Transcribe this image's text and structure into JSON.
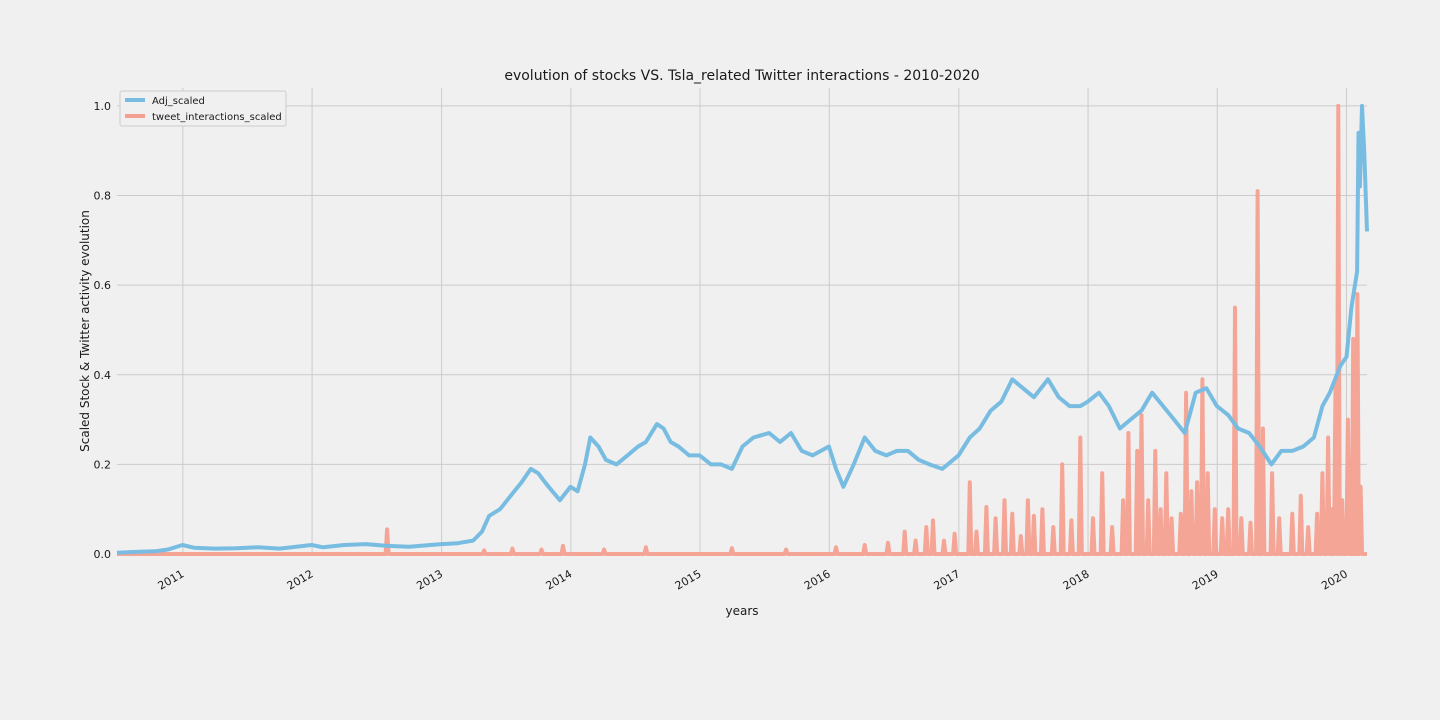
{
  "chart_data": {
    "type": "line",
    "title": "evolution of stocks VS. Tsla_related Twitter interactions - 2010-2020",
    "xlabel": "years",
    "ylabel": "Scaled Stock & Twitter activity evolution",
    "xlim": [
      "2010-06-29",
      "2020-02-28"
    ],
    "ylim": [
      0,
      1.04
    ],
    "x_ticks": [
      "2011",
      "2012",
      "2013",
      "2014",
      "2015",
      "2016",
      "2017",
      "2018",
      "2019",
      "2020"
    ],
    "y_ticks": [
      "0.0",
      "0.2",
      "0.4",
      "0.6",
      "0.8",
      "1.0"
    ],
    "grid": true,
    "legend_position": "upper-left",
    "series": [
      {
        "name": "Adj_scaled",
        "color": "#78bde1",
        "points": [
          [
            "2010-06-29",
            0.003
          ],
          [
            "2010-09-01",
            0.005
          ],
          [
            "2010-10-15",
            0.006
          ],
          [
            "2010-11-20",
            0.01
          ],
          [
            "2010-12-31",
            0.02
          ],
          [
            "2011-02-01",
            0.014
          ],
          [
            "2011-04-01",
            0.012
          ],
          [
            "2011-06-01",
            0.013
          ],
          [
            "2011-08-01",
            0.015
          ],
          [
            "2011-10-01",
            0.012
          ],
          [
            "2011-12-31",
            0.02
          ],
          [
            "2012-02-01",
            0.015
          ],
          [
            "2012-04-01",
            0.02
          ],
          [
            "2012-06-01",
            0.022
          ],
          [
            "2012-08-01",
            0.018
          ],
          [
            "2012-10-01",
            0.016
          ],
          [
            "2012-12-31",
            0.022
          ],
          [
            "2013-02-15",
            0.024
          ],
          [
            "2013-03-31",
            0.03
          ],
          [
            "2013-04-25",
            0.05
          ],
          [
            "2013-05-15",
            0.085
          ],
          [
            "2013-06-15",
            0.1
          ],
          [
            "2013-07-15",
            0.13
          ],
          [
            "2013-08-15",
            0.16
          ],
          [
            "2013-09-10",
            0.19
          ],
          [
            "2013-10-01",
            0.18
          ],
          [
            "2013-10-20",
            0.16
          ],
          [
            "2013-11-10",
            0.14
          ],
          [
            "2013-12-01",
            0.12
          ],
          [
            "2013-12-31",
            0.15
          ],
          [
            "2014-01-20",
            0.14
          ],
          [
            "2014-02-10",
            0.2
          ],
          [
            "2014-02-25",
            0.26
          ],
          [
            "2014-03-20",
            0.24
          ],
          [
            "2014-04-10",
            0.21
          ],
          [
            "2014-05-10",
            0.2
          ],
          [
            "2014-06-10",
            0.22
          ],
          [
            "2014-07-10",
            0.24
          ],
          [
            "2014-08-01",
            0.25
          ],
          [
            "2014-09-01",
            0.29
          ],
          [
            "2014-09-20",
            0.28
          ],
          [
            "2014-10-10",
            0.25
          ],
          [
            "2014-11-01",
            0.24
          ],
          [
            "2014-12-01",
            0.22
          ],
          [
            "2014-12-31",
            0.22
          ],
          [
            "2015-02-01",
            0.2
          ],
          [
            "2015-03-01",
            0.2
          ],
          [
            "2015-04-01",
            0.19
          ],
          [
            "2015-05-01",
            0.24
          ],
          [
            "2015-06-01",
            0.26
          ],
          [
            "2015-07-15",
            0.27
          ],
          [
            "2015-08-15",
            0.25
          ],
          [
            "2015-09-15",
            0.27
          ],
          [
            "2015-10-15",
            0.23
          ],
          [
            "2015-11-15",
            0.22
          ],
          [
            "2015-12-31",
            0.24
          ],
          [
            "2016-01-20",
            0.19
          ],
          [
            "2016-02-10",
            0.15
          ],
          [
            "2016-03-10",
            0.2
          ],
          [
            "2016-04-10",
            0.26
          ],
          [
            "2016-05-10",
            0.23
          ],
          [
            "2016-06-10",
            0.22
          ],
          [
            "2016-07-10",
            0.23
          ],
          [
            "2016-08-10",
            0.23
          ],
          [
            "2016-09-10",
            0.21
          ],
          [
            "2016-10-10",
            0.2
          ],
          [
            "2016-11-15",
            0.19
          ],
          [
            "2016-12-31",
            0.22
          ],
          [
            "2017-02-01",
            0.26
          ],
          [
            "2017-03-01",
            0.28
          ],
          [
            "2017-04-01",
            0.32
          ],
          [
            "2017-05-01",
            0.34
          ],
          [
            "2017-06-01",
            0.39
          ],
          [
            "2017-07-01",
            0.37
          ],
          [
            "2017-08-01",
            0.35
          ],
          [
            "2017-09-10",
            0.39
          ],
          [
            "2017-10-10",
            0.35
          ],
          [
            "2017-11-10",
            0.33
          ],
          [
            "2017-12-10",
            0.33
          ],
          [
            "2017-12-31",
            0.34
          ],
          [
            "2018-02-01",
            0.36
          ],
          [
            "2018-03-01",
            0.33
          ],
          [
            "2018-04-01",
            0.28
          ],
          [
            "2018-05-01",
            0.3
          ],
          [
            "2018-06-01",
            0.32
          ],
          [
            "2018-07-01",
            0.36
          ],
          [
            "2018-08-01",
            0.33
          ],
          [
            "2018-09-01",
            0.3
          ],
          [
            "2018-10-01",
            0.27
          ],
          [
            "2018-11-01",
            0.36
          ],
          [
            "2018-12-01",
            0.37
          ],
          [
            "2018-12-31",
            0.33
          ],
          [
            "2019-02-01",
            0.31
          ],
          [
            "2019-03-01",
            0.28
          ],
          [
            "2019-04-01",
            0.27
          ],
          [
            "2019-05-01",
            0.24
          ],
          [
            "2019-06-03",
            0.2
          ],
          [
            "2019-07-01",
            0.23
          ],
          [
            "2019-08-01",
            0.23
          ],
          [
            "2019-09-01",
            0.24
          ],
          [
            "2019-10-01",
            0.26
          ],
          [
            "2019-10-25",
            0.33
          ],
          [
            "2019-11-15",
            0.36
          ],
          [
            "2019-12-15",
            0.42
          ],
          [
            "2020-01-01",
            0.44
          ],
          [
            "2020-01-15",
            0.55
          ],
          [
            "2020-01-31",
            0.63
          ],
          [
            "2020-02-04",
            0.94
          ],
          [
            "2020-02-08",
            0.82
          ],
          [
            "2020-02-14",
            1.0
          ],
          [
            "2020-02-20",
            0.9
          ],
          [
            "2020-02-28",
            0.72
          ]
        ]
      },
      {
        "name": "tweet_interactions_scaled",
        "color": "#f4a090",
        "points": [
          [
            "2012-07-31",
            0.055
          ],
          [
            "2013-05-01",
            0.008
          ],
          [
            "2013-07-20",
            0.012
          ],
          [
            "2013-10-10",
            0.01
          ],
          [
            "2013-12-10",
            0.018
          ],
          [
            "2014-04-05",
            0.01
          ],
          [
            "2014-08-01",
            0.015
          ],
          [
            "2015-04-01",
            0.013
          ],
          [
            "2015-09-01",
            0.01
          ],
          [
            "2016-01-20",
            0.015
          ],
          [
            "2016-04-10",
            0.02
          ],
          [
            "2016-06-15",
            0.025
          ],
          [
            "2016-08-01",
            0.05
          ],
          [
            "2016-09-01",
            0.03
          ],
          [
            "2016-10-01",
            0.06
          ],
          [
            "2016-10-20",
            0.075
          ],
          [
            "2016-11-20",
            0.03
          ],
          [
            "2016-12-20",
            0.045
          ],
          [
            "2017-02-01",
            0.16
          ],
          [
            "2017-02-20",
            0.05
          ],
          [
            "2017-03-20",
            0.105
          ],
          [
            "2017-04-15",
            0.08
          ],
          [
            "2017-05-10",
            0.12
          ],
          [
            "2017-06-01",
            0.09
          ],
          [
            "2017-06-25",
            0.04
          ],
          [
            "2017-07-15",
            0.12
          ],
          [
            "2017-08-01",
            0.085
          ],
          [
            "2017-08-25",
            0.1
          ],
          [
            "2017-09-25",
            0.06
          ],
          [
            "2017-10-20",
            0.2
          ],
          [
            "2017-11-15",
            0.075
          ],
          [
            "2017-12-10",
            0.26
          ],
          [
            "2018-01-15",
            0.08
          ],
          [
            "2018-02-10",
            0.18
          ],
          [
            "2018-03-10",
            0.06
          ],
          [
            "2018-04-10",
            0.12
          ],
          [
            "2018-04-25",
            0.27
          ],
          [
            "2018-05-20",
            0.23
          ],
          [
            "2018-06-01",
            0.31
          ],
          [
            "2018-06-20",
            0.12
          ],
          [
            "2018-07-10",
            0.23
          ],
          [
            "2018-07-25",
            0.1
          ],
          [
            "2018-08-10",
            0.18
          ],
          [
            "2018-08-25",
            0.08
          ],
          [
            "2018-09-20",
            0.09
          ],
          [
            "2018-10-05",
            0.36
          ],
          [
            "2018-10-20",
            0.14
          ],
          [
            "2018-11-05",
            0.16
          ],
          [
            "2018-11-20",
            0.39
          ],
          [
            "2018-12-05",
            0.18
          ],
          [
            "2018-12-25",
            0.1
          ],
          [
            "2019-01-15",
            0.08
          ],
          [
            "2019-02-01",
            0.1
          ],
          [
            "2019-02-20",
            0.55
          ],
          [
            "2019-03-10",
            0.08
          ],
          [
            "2019-04-05",
            0.07
          ],
          [
            "2019-04-25",
            0.81
          ],
          [
            "2019-05-10",
            0.28
          ],
          [
            "2019-06-05",
            0.18
          ],
          [
            "2019-06-25",
            0.08
          ],
          [
            "2019-08-01",
            0.09
          ],
          [
            "2019-08-25",
            0.13
          ],
          [
            "2019-09-15",
            0.06
          ],
          [
            "2019-10-10",
            0.09
          ],
          [
            "2019-10-25",
            0.18
          ],
          [
            "2019-11-10",
            0.26
          ],
          [
            "2019-11-20",
            0.1
          ],
          [
            "2019-12-01",
            0.38
          ],
          [
            "2019-12-09",
            1.0
          ],
          [
            "2019-12-20",
            0.12
          ],
          [
            "2020-01-05",
            0.3
          ],
          [
            "2020-01-15",
            0.1
          ],
          [
            "2020-01-20",
            0.48
          ],
          [
            "2020-01-25",
            0.15
          ],
          [
            "2020-02-01",
            0.58
          ],
          [
            "2020-02-10",
            0.15
          ]
        ]
      }
    ]
  }
}
